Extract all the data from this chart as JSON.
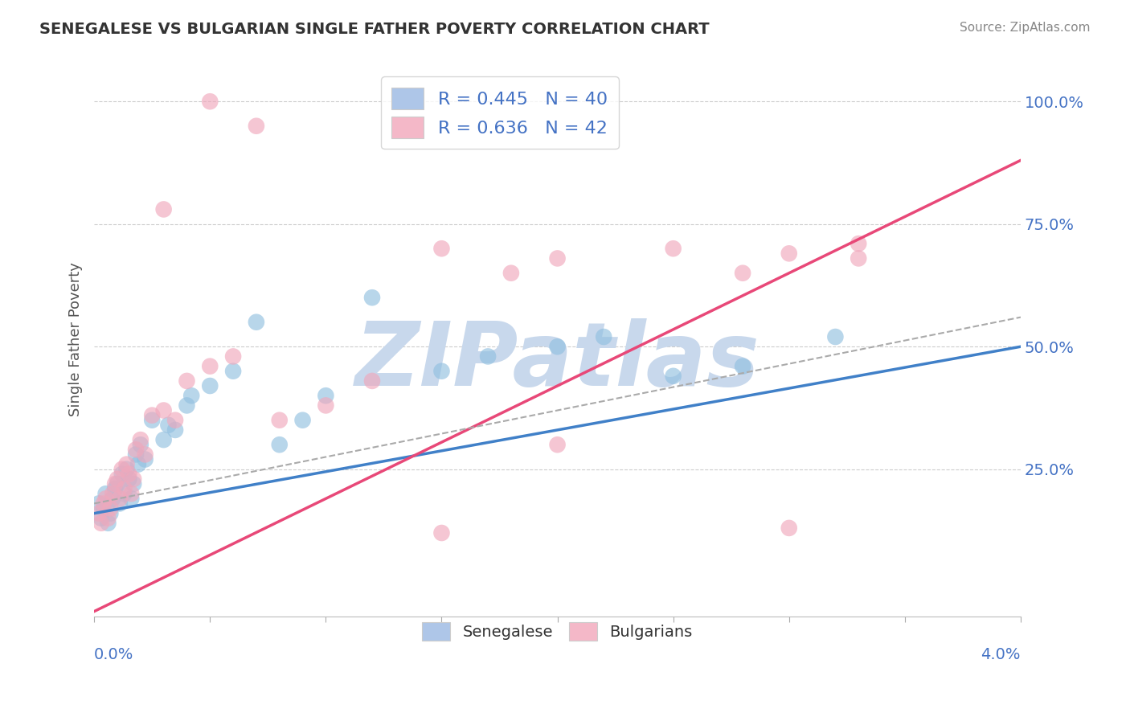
{
  "title": "SENEGALESE VS BULGARIAN SINGLE FATHER POVERTY CORRELATION CHART",
  "source": "Source: ZipAtlas.com",
  "ylabel": "Single Father Poverty",
  "xlim": [
    0.0,
    0.04
  ],
  "ylim": [
    -0.05,
    1.08
  ],
  "y_tick_vals": [
    0.25,
    0.5,
    0.75,
    1.0
  ],
  "y_tick_labels": [
    "25.0%",
    "50.0%",
    "75.0%",
    "100.0%"
  ],
  "watermark": "ZIPatlas",
  "watermark_color": "#c8d8ec",
  "blue_dot_color": "#92c0e0",
  "pink_dot_color": "#f0a8bc",
  "blue_line_color": "#4080c8",
  "pink_line_color": "#e84878",
  "gray_dash_color": "#aaaaaa",
  "legend_blue_color": "#aec6e8",
  "legend_pink_color": "#f4b8c8",
  "title_color": "#333333",
  "source_color": "#888888",
  "ytick_color": "#4472c4",
  "xlabel_color": "#4472c4",
  "ylabel_color": "#555555",
  "grid_color": "#cccccc",
  "sen_x": [
    0.0002,
    0.0003,
    0.0004,
    0.0005,
    0.0006,
    0.0007,
    0.0008,
    0.0009,
    0.001,
    0.0011,
    0.0012,
    0.0013,
    0.0014,
    0.0015,
    0.0016,
    0.0017,
    0.0018,
    0.0019,
    0.002,
    0.0022,
    0.0025,
    0.003,
    0.0032,
    0.0035,
    0.004,
    0.0042,
    0.005,
    0.006,
    0.007,
    0.008,
    0.009,
    0.01,
    0.012,
    0.015,
    0.017,
    0.02,
    0.022,
    0.025,
    0.028,
    0.032
  ],
  "sen_y": [
    0.18,
    0.15,
    0.17,
    0.2,
    0.14,
    0.16,
    0.19,
    0.21,
    0.22,
    0.18,
    0.24,
    0.2,
    0.25,
    0.23,
    0.19,
    0.22,
    0.28,
    0.26,
    0.3,
    0.27,
    0.35,
    0.31,
    0.34,
    0.33,
    0.38,
    0.4,
    0.42,
    0.45,
    0.55,
    0.3,
    0.35,
    0.4,
    0.6,
    0.45,
    0.48,
    0.5,
    0.52,
    0.44,
    0.46,
    0.52
  ],
  "bul_x": [
    0.0002,
    0.0003,
    0.0004,
    0.0005,
    0.0006,
    0.0007,
    0.0008,
    0.0009,
    0.001,
    0.0011,
    0.0012,
    0.0013,
    0.0014,
    0.0015,
    0.0016,
    0.0017,
    0.0018,
    0.002,
    0.0022,
    0.0025,
    0.003,
    0.0035,
    0.004,
    0.005,
    0.006,
    0.008,
    0.01,
    0.012,
    0.015,
    0.018,
    0.02,
    0.025,
    0.03,
    0.033,
    0.033,
    0.003,
    0.005,
    0.007,
    0.015,
    0.02,
    0.028,
    0.03
  ],
  "bul_y": [
    0.16,
    0.14,
    0.18,
    0.19,
    0.15,
    0.17,
    0.2,
    0.22,
    0.23,
    0.19,
    0.25,
    0.21,
    0.26,
    0.24,
    0.2,
    0.23,
    0.29,
    0.31,
    0.28,
    0.36,
    0.37,
    0.35,
    0.43,
    0.46,
    0.48,
    0.35,
    0.38,
    0.43,
    0.7,
    0.65,
    0.68,
    0.7,
    0.69,
    0.68,
    0.71,
    0.78,
    1.0,
    0.95,
    0.12,
    0.3,
    0.65,
    0.13
  ],
  "sen_line": {
    "x0": 0.0,
    "x1": 0.04,
    "y0": 0.16,
    "y1": 0.5
  },
  "bul_line": {
    "x0": 0.0,
    "x1": 0.04,
    "y0": -0.04,
    "y1": 0.88
  },
  "dash_line": {
    "x0": 0.0,
    "x1": 0.04,
    "y0": 0.18,
    "y1": 0.56
  }
}
